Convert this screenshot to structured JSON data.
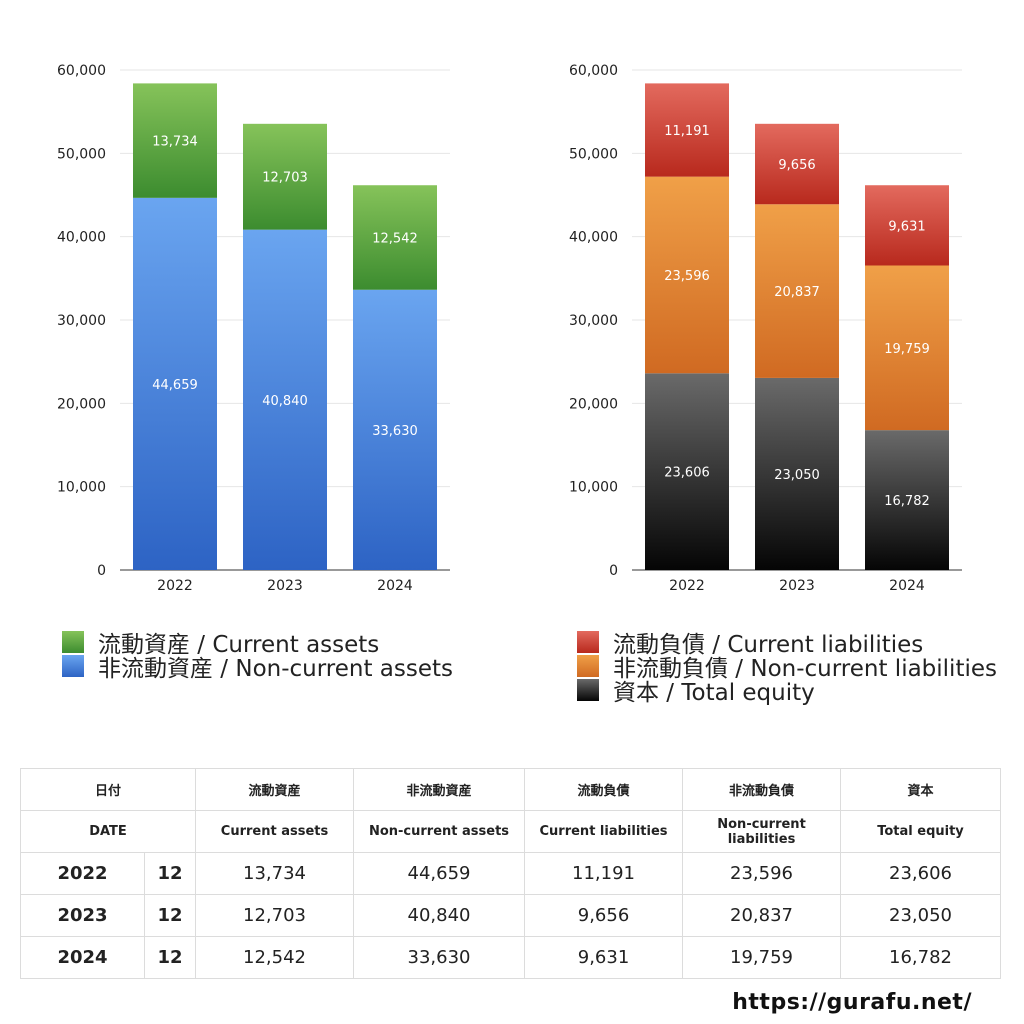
{
  "chart_data": [
    {
      "type": "bar",
      "stacked": true,
      "categories": [
        "2022",
        "2023",
        "2024"
      ],
      "ylim": [
        0,
        60000
      ],
      "yticks": [
        "0",
        "10,000",
        "20,000",
        "30,000",
        "40,000",
        "50,000",
        "60,000"
      ],
      "grid": true,
      "series": [
        {
          "name": "非流動資産 / Non-current assets",
          "values": [
            44659,
            40840,
            33630
          ],
          "labels": [
            "44,659",
            "40,840",
            "33,630"
          ],
          "color_top": "#6aa5f0",
          "color_bottom": "#2d63c4"
        },
        {
          "name": "流動資産 / Current assets",
          "values": [
            13734,
            12703,
            12542
          ],
          "labels": [
            "13,734",
            "12,703",
            "12,542"
          ],
          "color_top": "#86c35a",
          "color_bottom": "#3c8c2f"
        }
      ],
      "legend": [
        {
          "name": "流動資産 / Current assets",
          "color": "#4f9e3a"
        },
        {
          "name": "非流動資産 / Non-current assets",
          "color": "#3f7fdb"
        }
      ]
    },
    {
      "type": "bar",
      "stacked": true,
      "categories": [
        "2022",
        "2023",
        "2024"
      ],
      "ylim": [
        0,
        60000
      ],
      "yticks": [
        "0",
        "10,000",
        "20,000",
        "30,000",
        "40,000",
        "50,000",
        "60,000"
      ],
      "grid": true,
      "series": [
        {
          "name": "資本 / Total equity",
          "values": [
            23606,
            23050,
            16782
          ],
          "labels": [
            "23,606",
            "23,050",
            "16,782"
          ],
          "color_top": "#6a6a6a",
          "color_bottom": "#050505"
        },
        {
          "name": "非流動負債 / Non-current liabilities",
          "values": [
            23596,
            20837,
            19759
          ],
          "labels": [
            "23,596",
            "20,837",
            "19,759"
          ],
          "color_top": "#f0a048",
          "color_bottom": "#d06a22"
        },
        {
          "name": "流動負債 / Current liabilities",
          "values": [
            11191,
            9656,
            9631
          ],
          "labels": [
            "11,191",
            "9,656",
            "9,631"
          ],
          "color_top": "#e36a5e",
          "color_bottom": "#b8291d"
        }
      ],
      "legend": [
        {
          "name": "流動負債 / Current liabilities",
          "color": "#d44a3c"
        },
        {
          "name": "非流動負債 / Non-current liabilities",
          "color": "#e8832f"
        },
        {
          "name": "資本 / Total equity",
          "color": "#222222"
        }
      ]
    }
  ],
  "table": {
    "header_ja": [
      "日付",
      "流動資産",
      "非流動資産",
      "流動負債",
      "非流動負債",
      "資本"
    ],
    "header_en": [
      "DATE",
      "Current assets",
      "Non-current assets",
      "Current liabilities",
      "Non-current liabilities",
      "Total equity"
    ],
    "rows": [
      {
        "year": "2022",
        "month": "12",
        "values": [
          "13,734",
          "44,659",
          "11,191",
          "23,596",
          "23,606"
        ]
      },
      {
        "year": "2023",
        "month": "12",
        "values": [
          "12,703",
          "40,840",
          "9,656",
          "20,837",
          "23,050"
        ]
      },
      {
        "year": "2024",
        "month": "12",
        "values": [
          "12,542",
          "33,630",
          "9,631",
          "19,759",
          "16,782"
        ]
      }
    ]
  },
  "footer_url": "https://gurafu.net/"
}
